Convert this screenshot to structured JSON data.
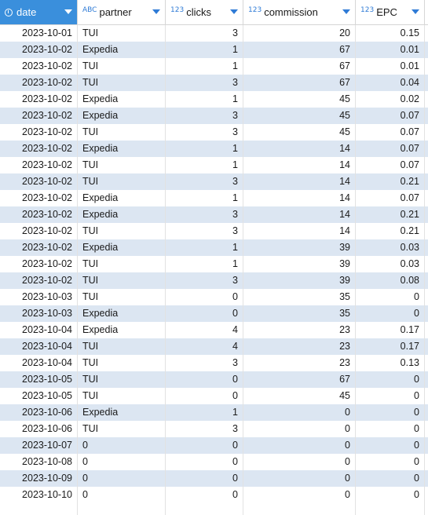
{
  "columns": [
    {
      "key": "date",
      "label": "date",
      "type_icon": "clock-icon",
      "selected": true
    },
    {
      "key": "partner",
      "label": "partner",
      "type_icon": "ABC",
      "selected": false
    },
    {
      "key": "clicks",
      "label": "clicks",
      "type_icon": "123",
      "selected": false
    },
    {
      "key": "commission",
      "label": "commission",
      "type_icon": "123",
      "selected": false
    },
    {
      "key": "epc",
      "label": "EPC",
      "type_icon": "123",
      "selected": false
    }
  ],
  "colors": {
    "header_selected": "#3a8fdc",
    "row_alt": "#dce6f2",
    "type_icon": "#2f7bd6"
  },
  "rows": [
    {
      "date": "2023-10-01",
      "partner": "TUI",
      "clicks": "3",
      "commission": "20",
      "epc": "0.15"
    },
    {
      "date": "2023-10-02",
      "partner": "Expedia",
      "clicks": "1",
      "commission": "67",
      "epc": "0.01"
    },
    {
      "date": "2023-10-02",
      "partner": "TUI",
      "clicks": "1",
      "commission": "67",
      "epc": "0.01"
    },
    {
      "date": "2023-10-02",
      "partner": "TUI",
      "clicks": "3",
      "commission": "67",
      "epc": "0.04"
    },
    {
      "date": "2023-10-02",
      "partner": "Expedia",
      "clicks": "1",
      "commission": "45",
      "epc": "0.02"
    },
    {
      "date": "2023-10-02",
      "partner": "Expedia",
      "clicks": "3",
      "commission": "45",
      "epc": "0.07"
    },
    {
      "date": "2023-10-02",
      "partner": "TUI",
      "clicks": "3",
      "commission": "45",
      "epc": "0.07"
    },
    {
      "date": "2023-10-02",
      "partner": "Expedia",
      "clicks": "1",
      "commission": "14",
      "epc": "0.07"
    },
    {
      "date": "2023-10-02",
      "partner": "TUI",
      "clicks": "1",
      "commission": "14",
      "epc": "0.07"
    },
    {
      "date": "2023-10-02",
      "partner": "TUI",
      "clicks": "3",
      "commission": "14",
      "epc": "0.21"
    },
    {
      "date": "2023-10-02",
      "partner": "Expedia",
      "clicks": "1",
      "commission": "14",
      "epc": "0.07"
    },
    {
      "date": "2023-10-02",
      "partner": "Expedia",
      "clicks": "3",
      "commission": "14",
      "epc": "0.21"
    },
    {
      "date": "2023-10-02",
      "partner": "TUI",
      "clicks": "3",
      "commission": "14",
      "epc": "0.21"
    },
    {
      "date": "2023-10-02",
      "partner": "Expedia",
      "clicks": "1",
      "commission": "39",
      "epc": "0.03"
    },
    {
      "date": "2023-10-02",
      "partner": "TUI",
      "clicks": "1",
      "commission": "39",
      "epc": "0.03"
    },
    {
      "date": "2023-10-02",
      "partner": "TUI",
      "clicks": "3",
      "commission": "39",
      "epc": "0.08"
    },
    {
      "date": "2023-10-03",
      "partner": "TUI",
      "clicks": "0",
      "commission": "35",
      "epc": "0"
    },
    {
      "date": "2023-10-03",
      "partner": "Expedia",
      "clicks": "0",
      "commission": "35",
      "epc": "0"
    },
    {
      "date": "2023-10-04",
      "partner": "Expedia",
      "clicks": "4",
      "commission": "23",
      "epc": "0.17"
    },
    {
      "date": "2023-10-04",
      "partner": "TUI",
      "clicks": "4",
      "commission": "23",
      "epc": "0.17"
    },
    {
      "date": "2023-10-04",
      "partner": "TUI",
      "clicks": "3",
      "commission": "23",
      "epc": "0.13"
    },
    {
      "date": "2023-10-05",
      "partner": "TUI",
      "clicks": "0",
      "commission": "67",
      "epc": "0"
    },
    {
      "date": "2023-10-05",
      "partner": "TUI",
      "clicks": "0",
      "commission": "45",
      "epc": "0"
    },
    {
      "date": "2023-10-06",
      "partner": "Expedia",
      "clicks": "1",
      "commission": "0",
      "epc": "0"
    },
    {
      "date": "2023-10-06",
      "partner": "TUI",
      "clicks": "3",
      "commission": "0",
      "epc": "0"
    },
    {
      "date": "2023-10-07",
      "partner": "0",
      "clicks": "0",
      "commission": "0",
      "epc": "0"
    },
    {
      "date": "2023-10-08",
      "partner": "0",
      "clicks": "0",
      "commission": "0",
      "epc": "0"
    },
    {
      "date": "2023-10-09",
      "partner": "0",
      "clicks": "0",
      "commission": "0",
      "epc": "0"
    },
    {
      "date": "2023-10-10",
      "partner": "0",
      "clicks": "0",
      "commission": "0",
      "epc": "0"
    }
  ]
}
